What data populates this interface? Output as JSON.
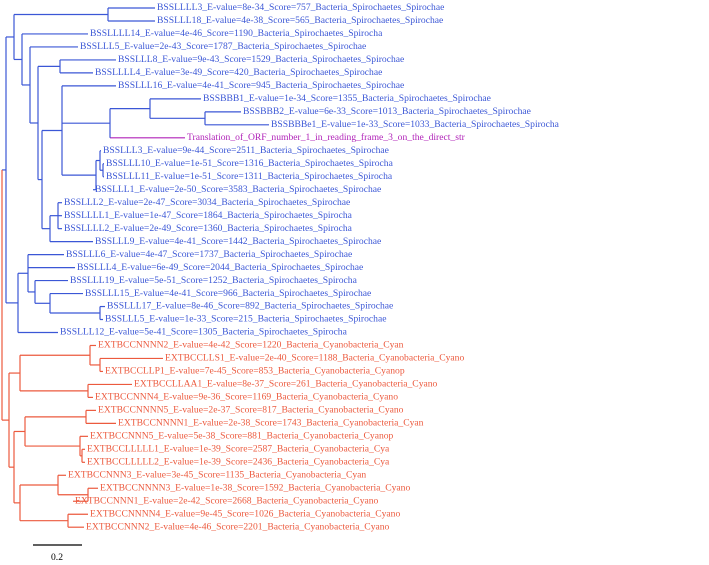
{
  "tree": {
    "leaves": [
      {
        "label": "BSSLLLL3_E-value=8e-34_Score=757_Bacteria_Spirochaetes_Spirochae",
        "color": "#3b57d6"
      },
      {
        "label": "BSSLLL18_E-value=4e-38_Score=565_Bacteria_Spirochaetes_Spirochae",
        "color": "#3b57d6"
      },
      {
        "label": "BSSLLLL14_E-value=4e-46_Score=1190_Bacteria_Spirochaetes_Spirocha",
        "color": "#3b57d6"
      },
      {
        "label": "BSSLLL5_E-value=2e-43_Score=1787_Bacteria_Spirochaetes_Spirochae",
        "color": "#3b57d6"
      },
      {
        "label": "BSSLLL8_E-value=9e-43_Score=1529_Bacteria_Spirochaetes_Spirochae",
        "color": "#3b57d6"
      },
      {
        "label": "BSSLLLL4_E-value=3e-49_Score=420_Bacteria_Spirochaetes_Spirochae",
        "color": "#3b57d6"
      },
      {
        "label": "BSSLLL16_E-value=4e-41_Score=945_Bacteria_Spirochaetes_Spirochae",
        "color": "#3b57d6"
      },
      {
        "label": "BSSBBB1_E-value=1e-34_Score=1355_Bacteria_Spirochaetes_Spirochae",
        "color": "#3b57d6"
      },
      {
        "label": "BSSBBB2_E-value=6e-33_Score=1013_Bacteria_Spirochaetes_Spirochae",
        "color": "#3b57d6"
      },
      {
        "label": "BSSBBBe1_E-value=1e-33_Score=1033_Bacteria_Spirochaetes_Spirocha",
        "color": "#3b57d6"
      },
      {
        "label": "Translation_of_ORF_number_1_in_reading_frame_3_on_the_direct_str",
        "color": "#b022b8"
      },
      {
        "label": "BSSLLL3_E-value=9e-44_Score=2511_Bacteria_Spirochaetes_Spirochae",
        "color": "#3b57d6"
      },
      {
        "label": "BSSLLL10_E-value=1e-51_Score=1316_Bacteria_Spirochaetes_Spirocha",
        "color": "#3b57d6"
      },
      {
        "label": "BSSLLL11_E-value=1e-51_Score=1311_Bacteria_Spirochaetes_Spirocha",
        "color": "#3b57d6"
      },
      {
        "label": "BSSLLL1_E-value=2e-50_Score=3583_Bacteria_Spirochaetes_Spirochae",
        "color": "#3b57d6"
      },
      {
        "label": "BSSLLL2_E-value=2e-47_Score=3034_Bacteria_Spirochaetes_Spirochae",
        "color": "#3b57d6"
      },
      {
        "label": "BSSLLLL1_E-value=1e-47_Score=1864_Bacteria_Spirochaetes_Spirocha",
        "color": "#3b57d6"
      },
      {
        "label": "BSSLLLL2_E-value=2e-49_Score=1360_Bacteria_Spirochaetes_Spirocha",
        "color": "#3b57d6"
      },
      {
        "label": "BSSLLL9_E-value=4e-41_Score=1442_Bacteria_Spirochaetes_Spirochae",
        "color": "#3b57d6"
      },
      {
        "label": "BSSLLL6_E-value=4e-47_Score=1737_Bacteria_Spirochaetes_Spirochae",
        "color": "#3b57d6"
      },
      {
        "label": "BSSLLL4_E-value=6e-49_Score=2044_Bacteria_Spirochaetes_Spirochae",
        "color": "#3b57d6"
      },
      {
        "label": "BSSLLL19_E-value=5e-51_Score=1252_Bacteria_Spirochaetes_Spirocha",
        "color": "#3b57d6"
      },
      {
        "label": "BSSLLL15_E-value=4e-41_Score=966_Bacteria_Spirochaetes_Spirochae",
        "color": "#3b57d6"
      },
      {
        "label": "BSSLLL17_E-value=8e-46_Score=892_Bacteria_Spirochaetes_Spirochae",
        "color": "#3b57d6"
      },
      {
        "label": "BSSLLL5_E-value=1e-33_Score=215_Bacteria_Spirochaetes_Spirochae",
        "color": "#3b57d6"
      },
      {
        "label": "BSSLLL12_E-value=5e-41_Score=1305_Bacteria_Spirochaetes_Spirocha",
        "color": "#3b57d6"
      },
      {
        "label": "EXTBCCNNNN2_E-value=4e-42_Score=1220_Bacteria_Cyanobacteria_Cyan",
        "color": "#ec5a3e"
      },
      {
        "label": "EXTBCCLLS1_E-value=2e-40_Score=1188_Bacteria_Cyanobacteria_Cyano",
        "color": "#ec5a3e"
      },
      {
        "label": "EXTBCCLLP1_E-value=7e-45_Score=853_Bacteria_Cyanobacteria_Cyanop",
        "color": "#ec5a3e"
      },
      {
        "label": "EXTBCCLLAA1_E-value=8e-37_Score=261_Bacteria_Cyanobacteria_Cyano",
        "color": "#ec5a3e"
      },
      {
        "label": "EXTBCCNNN4_E-value=9e-36_Score=1169_Bacteria_Cyanobacteria_Cyano",
        "color": "#ec5a3e"
      },
      {
        "label": "EXTBCCNNNN5_E-value=2e-37_Score=817_Bacteria_Cyanobacteria_Cyano",
        "color": "#ec5a3e"
      },
      {
        "label": "EXTBCCNNNN1_E-value=2e-38_Score=1743_Bacteria_Cyanobacteria_Cyan",
        "color": "#ec5a3e"
      },
      {
        "label": "EXTBCCNNN5_E-value=5e-38_Score=881_Bacteria_Cyanobacteria_Cyanop",
        "color": "#ec5a3e"
      },
      {
        "label": "EXTBCCLLLLL1_E-value=1e-39_Score=2587_Bacteria_Cyanobacteria_Cya",
        "color": "#ec5a3e"
      },
      {
        "label": "EXTBCCLLLLL2_E-value=1e-39_Score=2436_Bacteria_Cyanobacteria_Cya",
        "color": "#ec5a3e"
      },
      {
        "label": "EXTBCCNNN3_E-value=3e-45_Score=1135_Bacteria_Cyanobacteria_Cyan",
        "color": "#ec5a3e"
      },
      {
        "label": "EXTBCCNNNN3_E-value=1e-38_Score=1592_Bacteria_Cyanobacteria_Cyano",
        "color": "#ec5a3e"
      },
      {
        "label": "EXTBCCNNN1_E-value=2e-42_Score=2668_Bacteria_Cyanobacteria_Cyano",
        "color": "#ec5a3e"
      },
      {
        "label": "EXTBCCNNNN4_E-value=9e-45_Score=1026_Bacteria_Cyanobacteria_Cyano",
        "color": "#ec5a3e"
      },
      {
        "label": "EXTBCCNNN2_E-value=4e-46_Score=2201_Bacteria_Cyanobacteria_Cyano",
        "color": "#ec5a3e"
      }
    ],
    "scale_label": "0.2"
  }
}
